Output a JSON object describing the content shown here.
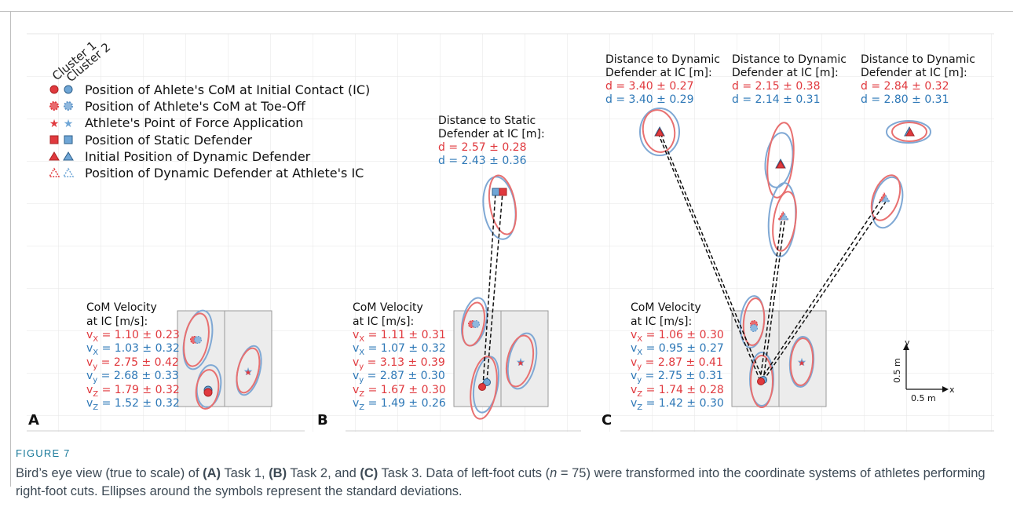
{
  "figure": {
    "label": "FIGURE 7",
    "caption": {
      "p1": "Bird’s eye view (true to scale) of ",
      "a": "(A)",
      "p2": " Task 1, ",
      "b": "(B)",
      "p3": " Task 2, and ",
      "c": "(C)",
      "p4": " Task 3. Data of left-foot cuts (",
      "n": "n",
      "p5": " = 75) were transformed into the coordinate systems of athletes performing right-foot cuts. Ellipses around the symbols represent the standard deviations."
    }
  },
  "colors": {
    "cluster1": "#e0393e",
    "cluster2": "#2e78b7",
    "ellipse1": "#e87070",
    "ellipse2": "#7fa8d4"
  },
  "legend": {
    "cluster1": "Cluster 1",
    "cluster2": "Cluster 2",
    "items": [
      "Position of Ahlete's CoM at Initial Contact (IC)",
      "Position of Athlete's CoM at Toe-Off",
      "Athlete's Point of Force Application",
      "Position of Static Defender",
      "Initial Position of Dynamic Defender",
      "Position of Dynamic Defender at Athlete's IC"
    ]
  },
  "panels": [
    {
      "letter": "A",
      "vel_title1": "CoM Velocity",
      "vel_title2": "at IC [m/s]:",
      "vx1": "1.10 ± 0.23",
      "vx2": "1.03 ± 0.32",
      "vy1": "2.75 ± 0.42",
      "vy2": "2.68 ± 0.33",
      "vz1": "1.79 ± 0.32",
      "vz2": "1.52 ± 0.32"
    },
    {
      "letter": "B",
      "vel_title1": "CoM Velocity",
      "vel_title2": "at IC [m/s]:",
      "vx1": "1.11 ± 0.31",
      "vx2": "1.07 ± 0.32",
      "vy1": "3.13 ± 0.39",
      "vy2": "2.87 ± 0.30",
      "vz1": "1.67 ± 0.30",
      "vz2": "1.49 ± 0.26",
      "dist_title1": "Distance to Static",
      "dist_title2": "Defender at IC [m]:",
      "d1": "d = 2.57 ± 0.28",
      "d2": "d = 2.43 ± 0.36"
    },
    {
      "letter": "C",
      "vel_title1": "CoM Velocity",
      "vel_title2": "at IC [m/s]:",
      "vx1": "1.06 ± 0.30",
      "vx2": "0.95 ± 0.27",
      "vy1": "2.87 ± 0.41",
      "vy2": "2.75 ± 0.31",
      "vz1": "1.74 ± 0.28",
      "vz2": "1.42 ± 0.30",
      "dist_title1": "Distance to Dynamic",
      "dist_title2": "Defender at IC [m]:",
      "dists": [
        {
          "d1": "d = 3.40 ± 0.27",
          "d2": "d = 3.40 ± 0.29"
        },
        {
          "d1": "d = 2.15 ± 0.38",
          "d2": "d = 2.14 ± 0.31"
        },
        {
          "d1": "d = 2.84 ± 0.32",
          "d2": "d = 2.80 ± 0.31"
        }
      ],
      "scale": {
        "y": "y",
        "x": "x",
        "len_y": "0.5 m",
        "len_x": "0.5 m"
      }
    }
  ],
  "vel_labels": {
    "vx": "v",
    "sx": "X",
    "sy": "y",
    "sz": "Z"
  }
}
